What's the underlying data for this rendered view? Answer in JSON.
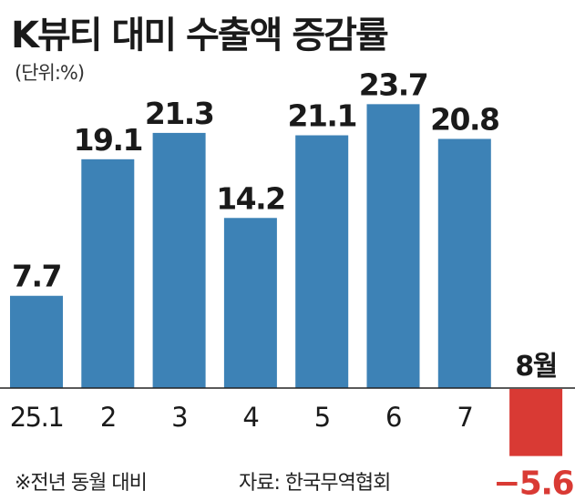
{
  "title": "K뷰티 대미 수출액 증감률",
  "unit": "(단위:%)",
  "footnote": "※전년 동월 대비",
  "source": "자료: 한국무역협회",
  "colors": {
    "positive": "#3d82b6",
    "negative": "#d93a34",
    "text": "#1a1a1a",
    "negative_label": "#d93a34"
  },
  "chart_data": {
    "type": "bar",
    "categories": [
      "25.1",
      "2",
      "3",
      "4",
      "5",
      "6",
      "7",
      "8월"
    ],
    "values": [
      7.7,
      19.1,
      21.3,
      14.2,
      21.1,
      23.7,
      20.8,
      -5.6
    ],
    "value_labels": [
      "7.7",
      "19.1",
      "21.3",
      "14.2",
      "21.1",
      "23.7",
      "20.8",
      "−5.6"
    ],
    "title": "K뷰티 대미 수출액 증감률",
    "ylabel": "(단위:%)",
    "xlabel": "",
    "ylim": [
      -5.6,
      23.7
    ],
    "grid": false
  }
}
